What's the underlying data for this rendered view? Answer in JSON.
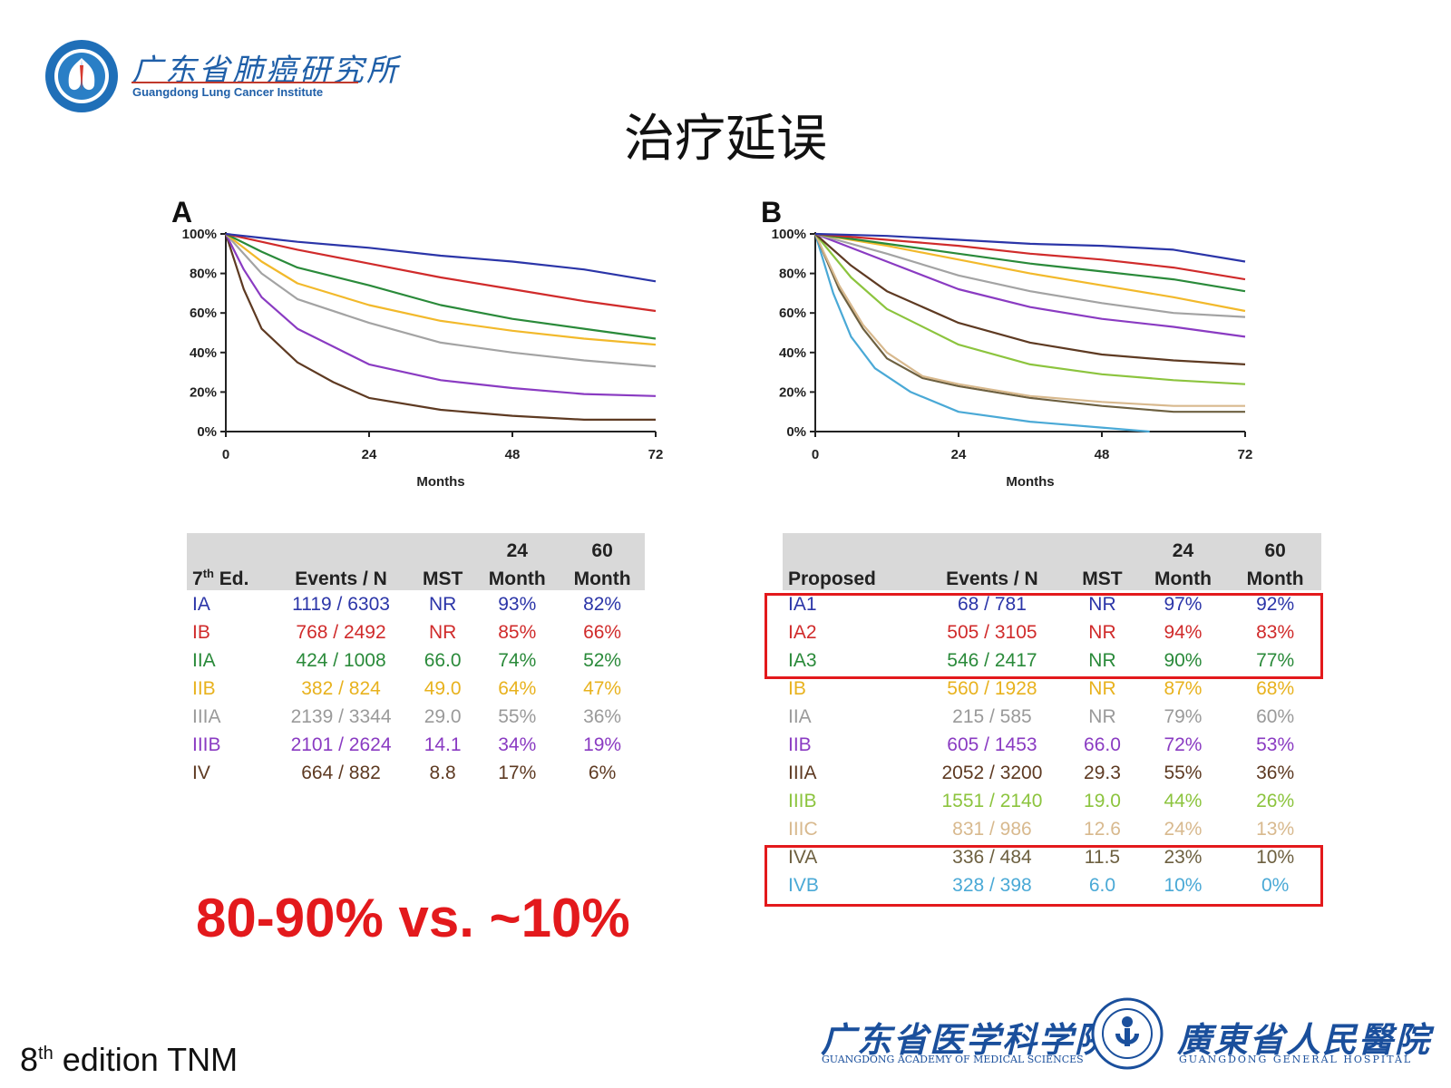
{
  "header": {
    "logo_cn": "广东省肺癌研究所",
    "logo_en": "Guangdong Lung Cancer Institute"
  },
  "title": "治疗延误",
  "chart_data": [
    {
      "type": "line",
      "panel": "A",
      "xlabel": "Months",
      "ylabel": "",
      "xlim": [
        0,
        72
      ],
      "ylim": [
        0,
        100
      ],
      "xticks": [
        "0",
        "24",
        "48",
        "72"
      ],
      "yticks": [
        "0%",
        "20%",
        "40%",
        "60%",
        "80%",
        "100%"
      ],
      "legend": "none",
      "series": [
        {
          "name": "IA",
          "color": "#2b35a8",
          "points": [
            [
              0,
              100
            ],
            [
              6,
              98
            ],
            [
              12,
              96
            ],
            [
              24,
              93
            ],
            [
              36,
              89
            ],
            [
              48,
              86
            ],
            [
              60,
              82
            ],
            [
              72,
              76
            ]
          ]
        },
        {
          "name": "IB",
          "color": "#d02b2b",
          "points": [
            [
              0,
              100
            ],
            [
              6,
              96
            ],
            [
              12,
              92
            ],
            [
              24,
              85
            ],
            [
              36,
              78
            ],
            [
              48,
              72
            ],
            [
              60,
              66
            ],
            [
              72,
              61
            ]
          ]
        },
        {
          "name": "IIA",
          "color": "#2a8a3a",
          "points": [
            [
              0,
              100
            ],
            [
              6,
              91
            ],
            [
              12,
              83
            ],
            [
              24,
              74
            ],
            [
              36,
              64
            ],
            [
              48,
              57
            ],
            [
              60,
              52
            ],
            [
              72,
              47
            ]
          ]
        },
        {
          "name": "IIB",
          "color": "#f2b92b",
          "points": [
            [
              0,
              100
            ],
            [
              6,
              86
            ],
            [
              12,
              75
            ],
            [
              24,
              64
            ],
            [
              36,
              56
            ],
            [
              48,
              51
            ],
            [
              60,
              47
            ],
            [
              72,
              44
            ]
          ]
        },
        {
          "name": "IIIA",
          "color": "#a3a3a3",
          "points": [
            [
              0,
              100
            ],
            [
              6,
              80
            ],
            [
              12,
              67
            ],
            [
              24,
              55
            ],
            [
              36,
              45
            ],
            [
              48,
              40
            ],
            [
              60,
              36
            ],
            [
              72,
              33
            ]
          ]
        },
        {
          "name": "IIIB",
          "color": "#8a3bc2",
          "points": [
            [
              0,
              100
            ],
            [
              3,
              82
            ],
            [
              6,
              68
            ],
            [
              12,
              52
            ],
            [
              24,
              34
            ],
            [
              36,
              26
            ],
            [
              48,
              22
            ],
            [
              60,
              19
            ],
            [
              72,
              18
            ]
          ]
        },
        {
          "name": "IV",
          "color": "#5e3a22",
          "points": [
            [
              0,
              100
            ],
            [
              3,
              72
            ],
            [
              6,
              52
            ],
            [
              12,
              35
            ],
            [
              18,
              25
            ],
            [
              24,
              17
            ],
            [
              36,
              11
            ],
            [
              48,
              8
            ],
            [
              60,
              6
            ],
            [
              72,
              6
            ]
          ]
        }
      ]
    },
    {
      "type": "line",
      "panel": "B",
      "xlabel": "Months",
      "ylabel": "",
      "xlim": [
        0,
        72
      ],
      "ylim": [
        0,
        100
      ],
      "xticks": [
        "0",
        "24",
        "48",
        "72"
      ],
      "yticks": [
        "0%",
        "20%",
        "40%",
        "60%",
        "80%",
        "100%"
      ],
      "legend": "none",
      "series": [
        {
          "name": "IA1",
          "color": "#2b35a8",
          "points": [
            [
              0,
              100
            ],
            [
              12,
              99
            ],
            [
              24,
              97
            ],
            [
              36,
              95
            ],
            [
              48,
              94
            ],
            [
              60,
              92
            ],
            [
              72,
              86
            ]
          ]
        },
        {
          "name": "IA2",
          "color": "#d02b2b",
          "points": [
            [
              0,
              100
            ],
            [
              12,
              97
            ],
            [
              24,
              94
            ],
            [
              36,
              90
            ],
            [
              48,
              87
            ],
            [
              60,
              83
            ],
            [
              72,
              77
            ]
          ]
        },
        {
          "name": "IA3",
          "color": "#2a8a3a",
          "points": [
            [
              0,
              100
            ],
            [
              12,
              95
            ],
            [
              24,
              90
            ],
            [
              36,
              85
            ],
            [
              48,
              81
            ],
            [
              60,
              77
            ],
            [
              72,
              71
            ]
          ]
        },
        {
          "name": "IB",
          "color": "#f2b92b",
          "points": [
            [
              0,
              100
            ],
            [
              12,
              94
            ],
            [
              24,
              87
            ],
            [
              36,
              80
            ],
            [
              48,
              74
            ],
            [
              60,
              68
            ],
            [
              72,
              61
            ]
          ]
        },
        {
          "name": "IIA",
          "color": "#a3a3a3",
          "points": [
            [
              0,
              100
            ],
            [
              12,
              90
            ],
            [
              24,
              79
            ],
            [
              36,
              71
            ],
            [
              48,
              65
            ],
            [
              60,
              60
            ],
            [
              72,
              58
            ]
          ]
        },
        {
          "name": "IIB",
          "color": "#8a3bc2",
          "points": [
            [
              0,
              100
            ],
            [
              12,
              86
            ],
            [
              24,
              72
            ],
            [
              36,
              63
            ],
            [
              48,
              57
            ],
            [
              60,
              53
            ],
            [
              72,
              48
            ]
          ]
        },
        {
          "name": "IIIA",
          "color": "#5e3a22",
          "points": [
            [
              0,
              100
            ],
            [
              6,
              84
            ],
            [
              12,
              71
            ],
            [
              24,
              55
            ],
            [
              36,
              45
            ],
            [
              48,
              39
            ],
            [
              60,
              36
            ],
            [
              72,
              34
            ]
          ]
        },
        {
          "name": "IIIB",
          "color": "#8cc43e",
          "points": [
            [
              0,
              100
            ],
            [
              6,
              78
            ],
            [
              12,
              62
            ],
            [
              24,
              44
            ],
            [
              36,
              34
            ],
            [
              48,
              29
            ],
            [
              60,
              26
            ],
            [
              72,
              24
            ]
          ]
        },
        {
          "name": "IIIC",
          "color": "#d8b98e",
          "points": [
            [
              0,
              100
            ],
            [
              4,
              74
            ],
            [
              8,
              54
            ],
            [
              12,
              40
            ],
            [
              18,
              28
            ],
            [
              24,
              24
            ],
            [
              36,
              18
            ],
            [
              48,
              15
            ],
            [
              60,
              13
            ],
            [
              72,
              13
            ]
          ]
        },
        {
          "name": "IVA",
          "color": "#6d6040",
          "points": [
            [
              0,
              100
            ],
            [
              4,
              72
            ],
            [
              8,
              52
            ],
            [
              12,
              37
            ],
            [
              18,
              27
            ],
            [
              24,
              23
            ],
            [
              36,
              17
            ],
            [
              48,
              13
            ],
            [
              60,
              10
            ],
            [
              72,
              10
            ]
          ]
        },
        {
          "name": "IVB",
          "color": "#4aa9d6",
          "points": [
            [
              0,
              100
            ],
            [
              3,
              70
            ],
            [
              6,
              48
            ],
            [
              10,
              32
            ],
            [
              16,
              20
            ],
            [
              24,
              10
            ],
            [
              36,
              5
            ],
            [
              48,
              2
            ],
            [
              56,
              0
            ]
          ]
        }
      ]
    }
  ],
  "table_a": {
    "head_top": [
      "",
      "",
      "",
      "24",
      "60"
    ],
    "head_bottom_edition": "7",
    "head_bottom_edition_sup": "th",
    "head_bottom_edition_tail": " Ed.",
    "head_bottom": [
      "Events / N",
      "MST",
      "Month",
      "Month"
    ],
    "rows": [
      {
        "stage": "IA",
        "events": "1119 / 6303",
        "mst": "NR",
        "m24": "93%",
        "m60": "82%",
        "color": "#2b35a8"
      },
      {
        "stage": "IB",
        "events": "768 / 2492",
        "mst": "NR",
        "m24": "85%",
        "m60": "66%",
        "color": "#d02b2b"
      },
      {
        "stage": "IIA",
        "events": "424 / 1008",
        "mst": "66.0",
        "m24": "74%",
        "m60": "52%",
        "color": "#2a8a3a"
      },
      {
        "stage": "IIB",
        "events": "382 / 824",
        "mst": "49.0",
        "m24": "64%",
        "m60": "47%",
        "color": "#e8b21e"
      },
      {
        "stage": "IIIA",
        "events": "2139 / 3344",
        "mst": "29.0",
        "m24": "55%",
        "m60": "36%",
        "color": "#9a9a9a"
      },
      {
        "stage": "IIIB",
        "events": "2101 / 2624",
        "mst": "14.1",
        "m24": "34%",
        "m60": "19%",
        "color": "#8a3bc2"
      },
      {
        "stage": "IV",
        "events": "664 / 882",
        "mst": "8.8",
        "m24": "17%",
        "m60": "6%",
        "color": "#5e3a22"
      }
    ]
  },
  "table_b": {
    "head_top": [
      "",
      "",
      "",
      "24",
      "60"
    ],
    "head_bottom": [
      "Proposed",
      "Events / N",
      "MST",
      "Month",
      "Month"
    ],
    "rows": [
      {
        "stage": "IA1",
        "events": "68 / 781",
        "mst": "NR",
        "m24": "97%",
        "m60": "92%",
        "color": "#2b35a8"
      },
      {
        "stage": "IA2",
        "events": "505 / 3105",
        "mst": "NR",
        "m24": "94%",
        "m60": "83%",
        "color": "#d02b2b"
      },
      {
        "stage": "IA3",
        "events": "546 / 2417",
        "mst": "NR",
        "m24": "90%",
        "m60": "77%",
        "color": "#2a8a3a"
      },
      {
        "stage": "IB",
        "events": "560 / 1928",
        "mst": "NR",
        "m24": "87%",
        "m60": "68%",
        "color": "#e8b21e"
      },
      {
        "stage": "IIA",
        "events": "215 / 585",
        "mst": "NR",
        "m24": "79%",
        "m60": "60%",
        "color": "#9a9a9a"
      },
      {
        "stage": "IIB",
        "events": "605 / 1453",
        "mst": "66.0",
        "m24": "72%",
        "m60": "53%",
        "color": "#8a3bc2"
      },
      {
        "stage": "IIIA",
        "events": "2052 / 3200",
        "mst": "29.3",
        "m24": "55%",
        "m60": "36%",
        "color": "#5e3a22"
      },
      {
        "stage": "IIIB",
        "events": "1551 / 2140",
        "mst": "19.0",
        "m24": "44%",
        "m60": "26%",
        "color": "#8cc43e"
      },
      {
        "stage": "IIIC",
        "events": "831 / 986",
        "mst": "12.6",
        "m24": "24%",
        "m60": "13%",
        "color": "#d8b98e"
      },
      {
        "stage": "IVA",
        "events": "336 / 484",
        "mst": "11.5",
        "m24": "23%",
        "m60": "10%",
        "color": "#6d6040"
      },
      {
        "stage": "IVB",
        "events": "328 / 398",
        "mst": "6.0",
        "m24": "10%",
        "m60": "0%",
        "color": "#4aa9d6"
      }
    ]
  },
  "highlight": "80-90% vs. ~10%",
  "footnote": {
    "prefix": "8",
    "sup": "th",
    "suffix": " edition TNM"
  },
  "footer": {
    "gams_cn": "广东省医学科学院",
    "gams_en": "GUANGDONG ACADEMY OF MEDICAL SCIENCES",
    "ggh_cn": "廣東省人民醫院",
    "ggh_en": "GUANGDONG GENERAL HOSPITAL"
  },
  "colors": {
    "highlight": "#e3191c",
    "brand_blue": "#1f5fa8"
  }
}
